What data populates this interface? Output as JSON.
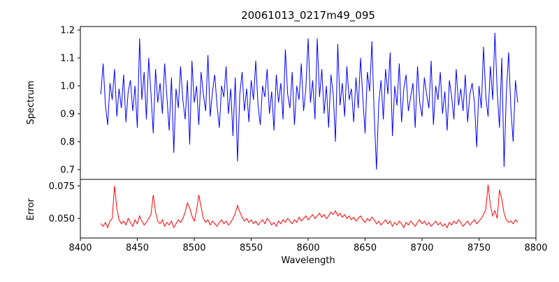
{
  "chart_data": {
    "type": "line",
    "title": "20061013_0217m49_095",
    "xlabel": "Wavelength",
    "xlim": [
      8400,
      8800
    ],
    "xticks": [
      8400,
      8450,
      8500,
      8550,
      8600,
      8650,
      8700,
      8750,
      8800
    ],
    "xtick_labels": [
      "8400",
      "8450",
      "8500",
      "8550",
      "8600",
      "8650",
      "8700",
      "8750",
      "8800"
    ],
    "x_start": 8418,
    "x_step": 2,
    "grid": false,
    "legend": "none",
    "panels": [
      {
        "name": "spectrum",
        "ylabel": "Spectrum",
        "color": "#0000ff",
        "ylim": [
          0.665,
          1.2125
        ],
        "yticks": [
          0.7,
          0.8,
          0.9,
          1.0,
          1.1,
          1.2
        ],
        "ytick_labels": [
          "0.7",
          "0.8",
          "0.9",
          "1.0",
          "1.1",
          "1.2"
        ],
        "values": [
          0.97,
          1.08,
          0.93,
          0.86,
          1.01,
          0.95,
          1.06,
          0.89,
          0.99,
          0.92,
          1.04,
          0.87,
          0.98,
          1.02,
          0.91,
          1.0,
          0.85,
          1.17,
          0.95,
          1.05,
          0.88,
          1.1,
          0.97,
          0.83,
          1.06,
          0.94,
          1.01,
          0.9,
          1.08,
          0.96,
          0.84,
          1.03,
          0.76,
          0.99,
          0.92,
          1.07,
          0.95,
          0.88,
          1.02,
          0.79,
          1.09,
          0.94,
          1.0,
          0.86,
          1.05,
          0.97,
          0.91,
          1.11,
          0.89,
          0.98,
          1.04,
          0.93,
          0.85,
          1.0,
          0.96,
          1.07,
          0.9,
          0.99,
          0.82,
          1.03,
          0.73,
          0.97,
          1.05,
          0.91,
          0.99,
          0.87,
          1.02,
          0.95,
          1.09,
          0.93,
          0.86,
          1.0,
          0.96,
          1.06,
          0.9,
          0.98,
          0.84,
          1.04,
          0.94,
          1.01,
          0.88,
          1.13,
          0.97,
          0.92,
          1.05,
          0.86,
          1.0,
          0.95,
          1.08,
          0.91,
          0.99,
          1.17,
          0.94,
          1.02,
          0.88,
          1.17,
          0.96,
          1.06,
          0.9,
          1.0,
          0.85,
          1.04,
          0.97,
          0.8,
          1.15,
          0.93,
          1.01,
          0.89,
          1.07,
          0.95,
          0.99,
          0.87,
          1.03,
          0.92,
          1.1,
          0.96,
          0.83,
          1.05,
          0.98,
          1.16,
          0.9,
          0.7,
          0.94,
          1.02,
          0.88,
          1.06,
          0.97,
          1.12,
          0.82,
          1.0,
          0.93,
          1.08,
          0.87,
          0.99,
          1.04,
          0.91,
          0.96,
          1.01,
          0.85,
          1.07,
          0.94,
          0.89,
          1.03,
          0.97,
          0.92,
          1.09,
          0.86,
          1.0,
          0.95,
          1.05,
          0.9,
          0.98,
          0.84,
          1.02,
          0.96,
          0.88,
          1.06,
          0.93,
          0.99,
          0.91,
          1.04,
          0.87,
          0.97,
          1.01,
          0.94,
          0.78,
          1.0,
          0.92,
          1.14,
          0.96,
          0.89,
          1.07,
          0.95,
          1.19,
          0.98,
          0.85,
          1.1,
          0.71,
          0.97,
          1.12,
          0.92,
          0.8,
          1.02,
          0.94
        ]
      },
      {
        "name": "error",
        "ylabel": "Error",
        "color": "#ff0000",
        "ylim": [
          0.035,
          0.08
        ],
        "yticks": [
          0.05,
          0.075
        ],
        "ytick_labels": [
          "0.050",
          "0.075"
        ],
        "values": [
          0.046,
          0.044,
          0.047,
          0.043,
          0.048,
          0.05,
          0.075,
          0.058,
          0.049,
          0.046,
          0.048,
          0.045,
          0.05,
          0.047,
          0.044,
          0.049,
          0.046,
          0.052,
          0.048,
          0.045,
          0.047,
          0.05,
          0.053,
          0.068,
          0.055,
          0.048,
          0.046,
          0.049,
          0.044,
          0.047,
          0.045,
          0.048,
          0.043,
          0.046,
          0.049,
          0.047,
          0.05,
          0.055,
          0.062,
          0.058,
          0.052,
          0.048,
          0.056,
          0.068,
          0.059,
          0.05,
          0.047,
          0.049,
          0.045,
          0.048,
          0.046,
          0.044,
          0.047,
          0.049,
          0.046,
          0.048,
          0.045,
          0.047,
          0.05,
          0.054,
          0.06,
          0.055,
          0.051,
          0.048,
          0.05,
          0.047,
          0.049,
          0.046,
          0.048,
          0.045,
          0.047,
          0.049,
          0.046,
          0.05,
          0.048,
          0.045,
          0.047,
          0.044,
          0.048,
          0.046,
          0.049,
          0.047,
          0.05,
          0.048,
          0.046,
          0.049,
          0.047,
          0.051,
          0.048,
          0.05,
          0.052,
          0.049,
          0.051,
          0.053,
          0.05,
          0.052,
          0.054,
          0.051,
          0.053,
          0.05,
          0.052,
          0.055,
          0.053,
          0.056,
          0.052,
          0.054,
          0.051,
          0.053,
          0.05,
          0.052,
          0.049,
          0.051,
          0.048,
          0.05,
          0.052,
          0.049,
          0.047,
          0.05,
          0.048,
          0.051,
          0.049,
          0.046,
          0.048,
          0.045,
          0.047,
          0.049,
          0.046,
          0.048,
          0.044,
          0.047,
          0.045,
          0.048,
          0.046,
          0.043,
          0.047,
          0.045,
          0.048,
          0.046,
          0.044,
          0.047,
          0.049,
          0.046,
          0.048,
          0.045,
          0.047,
          0.044,
          0.046,
          0.048,
          0.045,
          0.047,
          0.044,
          0.046,
          0.043,
          0.047,
          0.045,
          0.048,
          0.046,
          0.049,
          0.047,
          0.044,
          0.046,
          0.048,
          0.045,
          0.047,
          0.049,
          0.046,
          0.048,
          0.05,
          0.053,
          0.057,
          0.076,
          0.06,
          0.052,
          0.056,
          0.05,
          0.072,
          0.065,
          0.054,
          0.049,
          0.047,
          0.048,
          0.046,
          0.049,
          0.047
        ]
      }
    ]
  }
}
